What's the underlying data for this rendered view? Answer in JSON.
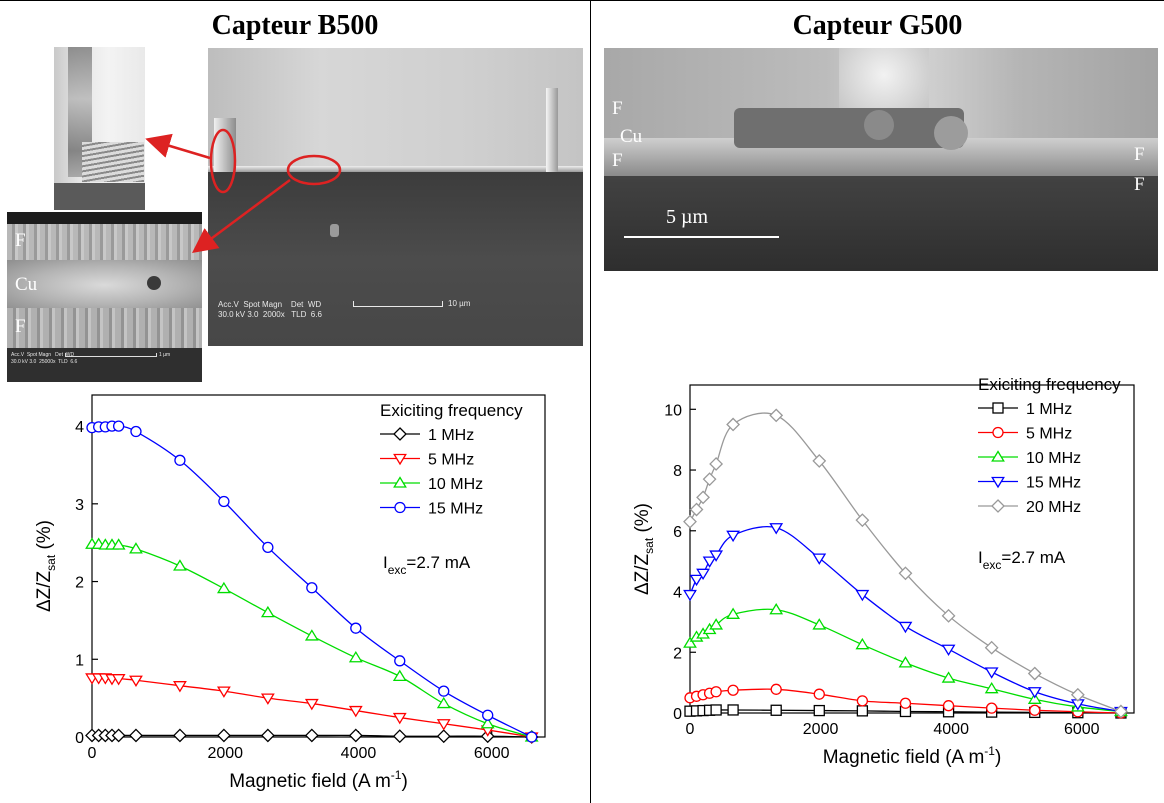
{
  "panels": {
    "left_title": "Capteur B500",
    "right_title": "Capteur G500"
  },
  "micrographs": {
    "b500_meta": "Acc.V  Spot Magn    Det  WD\n30.0 kV 3.0  2000x   TLD  6.6",
    "b500_scale": "10 µm",
    "b500_zoom_meta": "Acc.V  Spot Magn   Det  WD\n30.0 kV 3.0  25000x  TLD  6.6",
    "b500_zoom_scale": "1 µm",
    "g500_scale": "5 µm",
    "layer_f": "F",
    "layer_cu": "Cu"
  },
  "chart_data": [
    {
      "type": "line",
      "panel": "Capteur B500",
      "xlabel": "Magnetic field (A m",
      "xlabel_sup": "-1",
      "xlabel_end": ")",
      "ylabel_prefix": "ΔZ/Z",
      "ylabel_sub": "sat",
      "ylabel_suffix": " (%)",
      "xlim": [
        0,
        6800
      ],
      "ylim": [
        0,
        4.4
      ],
      "xticks": [
        0,
        2000,
        4000,
        6000
      ],
      "yticks": [
        0,
        1,
        2,
        3,
        4
      ],
      "legend_title": "Exiciting frequency",
      "legend_placement": "top-right",
      "annotation_prefix": "I",
      "annotation_sub": "exc",
      "annotation_suffix": "=2.7 mA",
      "series": [
        {
          "name": "1 MHz",
          "color": "#000000",
          "marker": "diamond",
          "x": [
            0,
            100,
            200,
            300,
            400,
            660,
            1320,
            1980,
            2640,
            3300,
            3960,
            4620,
            5280,
            5940,
            6600
          ],
          "y": [
            0.02,
            0.02,
            0.02,
            0.02,
            0.02,
            0.02,
            0.02,
            0.02,
            0.02,
            0.02,
            0.02,
            0.01,
            0.01,
            0.01,
            0.0
          ]
        },
        {
          "name": "5 MHz",
          "color": "#ff0000",
          "marker": "triangle-down",
          "x": [
            0,
            100,
            200,
            300,
            400,
            660,
            1320,
            1980,
            2640,
            3300,
            3960,
            4620,
            5280,
            5940,
            6600
          ],
          "y": [
            0.76,
            0.76,
            0.76,
            0.75,
            0.75,
            0.73,
            0.66,
            0.59,
            0.5,
            0.43,
            0.34,
            0.25,
            0.17,
            0.09,
            0.0
          ]
        },
        {
          "name": "10 MHz",
          "color": "#00dd00",
          "marker": "triangle-up",
          "x": [
            0,
            100,
            200,
            300,
            400,
            660,
            1320,
            1980,
            2640,
            3300,
            3960,
            4620,
            5280,
            5940,
            6600
          ],
          "y": [
            2.48,
            2.48,
            2.47,
            2.47,
            2.47,
            2.42,
            2.2,
            1.91,
            1.6,
            1.3,
            1.02,
            0.78,
            0.43,
            0.17,
            0.0
          ]
        },
        {
          "name": "15 MHz",
          "color": "#0000ff",
          "marker": "circle",
          "x": [
            0,
            100,
            200,
            300,
            400,
            660,
            1320,
            1980,
            2640,
            3300,
            3960,
            4620,
            5280,
            5940,
            6600
          ],
          "y": [
            3.98,
            3.99,
            3.99,
            4.0,
            4.0,
            3.93,
            3.56,
            3.03,
            2.44,
            1.92,
            1.4,
            0.98,
            0.59,
            0.28,
            0.0
          ]
        }
      ]
    },
    {
      "type": "line",
      "panel": "Capteur G500",
      "xlabel": "Magnetic field (A m",
      "xlabel_sup": "-1",
      "xlabel_end": ")",
      "ylabel_prefix": "ΔZ/Z",
      "ylabel_sub": "sat",
      "ylabel_suffix": " (%)",
      "xlim": [
        0,
        6800
      ],
      "ylim": [
        0,
        10.8
      ],
      "xticks": [
        0,
        2000,
        4000,
        6000
      ],
      "yticks": [
        0,
        2,
        4,
        6,
        8,
        10
      ],
      "legend_title": "Exiciting frequency",
      "legend_placement": "top-right",
      "annotation_prefix": "I",
      "annotation_sub": "exc",
      "annotation_suffix": "=2.7 mA",
      "series": [
        {
          "name": "1 MHz",
          "color": "#000000",
          "marker": "square",
          "x": [
            0,
            100,
            200,
            300,
            400,
            660,
            1320,
            1980,
            2640,
            3300,
            3960,
            4620,
            5280,
            5940,
            6600
          ],
          "y": [
            0.06,
            0.07,
            0.08,
            0.09,
            0.1,
            0.1,
            0.09,
            0.08,
            0.07,
            0.05,
            0.04,
            0.03,
            0.02,
            0.01,
            0.0
          ]
        },
        {
          "name": "5 MHz",
          "color": "#ff0000",
          "marker": "circle",
          "x": [
            0,
            100,
            200,
            300,
            400,
            660,
            1320,
            1980,
            2640,
            3300,
            3960,
            4620,
            5280,
            5940,
            6600
          ],
          "y": [
            0.5,
            0.55,
            0.6,
            0.65,
            0.7,
            0.75,
            0.78,
            0.62,
            0.4,
            0.32,
            0.24,
            0.16,
            0.09,
            0.04,
            0.0
          ]
        },
        {
          "name": "10 MHz",
          "color": "#00dd00",
          "marker": "triangle-up",
          "x": [
            0,
            100,
            200,
            300,
            400,
            660,
            1320,
            1980,
            2640,
            3300,
            3960,
            4620,
            5280,
            5940,
            6600
          ],
          "y": [
            2.3,
            2.5,
            2.6,
            2.75,
            2.9,
            3.25,
            3.4,
            2.9,
            2.25,
            1.65,
            1.15,
            0.8,
            0.45,
            0.2,
            0.05
          ]
        },
        {
          "name": "15 MHz",
          "color": "#0000ff",
          "marker": "triangle-down",
          "x": [
            0,
            100,
            200,
            300,
            400,
            660,
            1320,
            1980,
            2640,
            3300,
            3960,
            4620,
            5280,
            5940,
            6600
          ],
          "y": [
            3.9,
            4.4,
            4.6,
            5.0,
            5.2,
            5.85,
            6.1,
            5.1,
            3.9,
            2.85,
            2.1,
            1.35,
            0.7,
            0.3,
            0.05
          ]
        },
        {
          "name": "20 MHz",
          "color": "#999999",
          "marker": "diamond",
          "x": [
            0,
            100,
            200,
            300,
            400,
            660,
            1320,
            1980,
            2640,
            3300,
            3960,
            4620,
            5280,
            5940,
            6600
          ],
          "y": [
            6.3,
            6.7,
            7.1,
            7.7,
            8.2,
            9.5,
            9.8,
            8.3,
            6.35,
            4.6,
            3.2,
            2.15,
            1.3,
            0.6,
            0.05
          ]
        }
      ]
    }
  ]
}
